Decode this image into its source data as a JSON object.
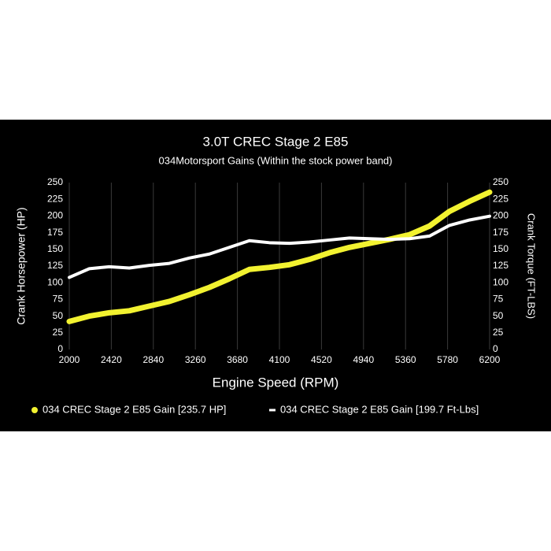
{
  "chart_data": {
    "type": "line",
    "title": "3.0T CREC Stage 2 E85",
    "subtitle": "034Motorsport Gains (Within the stock power band)",
    "xlabel": "Engine Speed (RPM)",
    "ylabel": "Crank Horsepower (HP)",
    "y2label": "Crank Torque (FT-LBS)",
    "x": [
      2000,
      2200,
      2400,
      2600,
      2800,
      3000,
      3200,
      3400,
      3600,
      3800,
      4000,
      4200,
      4400,
      4600,
      4800,
      5000,
      5200,
      5400,
      5600,
      5800,
      6000,
      6200
    ],
    "series": [
      {
        "name": "034 CREC Stage 2 E85 Gain [235.7 HP]",
        "color": "#f2f230",
        "values": [
          42,
          50,
          55,
          58,
          65,
          72,
          82,
          93,
          106,
          120,
          123,
          127,
          135,
          145,
          153,
          159,
          165,
          172,
          185,
          207,
          222,
          235.7
        ]
      },
      {
        "name": "034 CREC Stage 2 E85 Gain [199.7 Ft-Lbs]",
        "color": "#ffffff",
        "axis": "y2",
        "values": [
          108,
          121,
          124,
          122,
          126,
          129,
          137,
          143,
          153,
          163,
          160,
          159,
          161,
          164,
          167,
          166,
          165,
          166,
          170,
          186,
          194,
          199.7
        ]
      }
    ],
    "xlim": [
      2000,
      6200
    ],
    "xticks": [
      2000,
      2420,
      2840,
      3260,
      3680,
      4100,
      4520,
      4940,
      5360,
      5780,
      6200
    ],
    "ylim": [
      0,
      250
    ],
    "yticks": [
      0,
      25,
      50,
      75,
      100,
      125,
      150,
      175,
      200,
      225,
      250
    ],
    "y2lim": [
      0,
      250
    ],
    "y2ticks": [
      0,
      25,
      50,
      75,
      100,
      125,
      150,
      175,
      200,
      225,
      250
    ],
    "grid": true
  }
}
